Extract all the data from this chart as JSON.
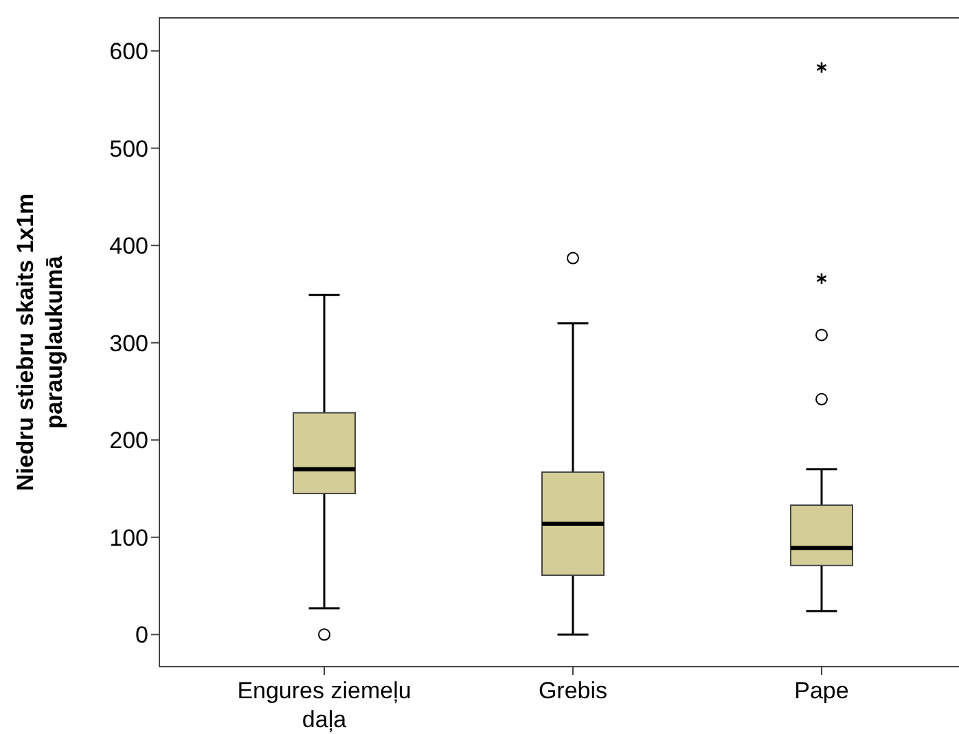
{
  "chart_data": {
    "type": "box",
    "ylabel": "Niedru stiebru skaits 1x1m parauglaukumā",
    "categories": [
      "Engures ziemeļu daļa",
      "Grebis",
      "Pape"
    ],
    "color": "#d3ce97",
    "ylim": [
      -33,
      634
    ],
    "yticks": [
      0,
      100,
      200,
      300,
      400,
      500,
      600
    ],
    "grid": false,
    "boxes": [
      {
        "low": 27,
        "q1": 145,
        "median": 170,
        "q3": 228,
        "high": 349,
        "outliers": [
          0
        ]
      },
      {
        "low": 0,
        "q1": 61,
        "median": 114,
        "q3": 167,
        "high": 320,
        "outliers": [
          387
        ]
      },
      {
        "low": 24,
        "q1": 71,
        "median": 89,
        "q3": 133,
        "high": 170,
        "outliers": [
          242,
          308,
          366,
          583
        ]
      }
    ]
  }
}
